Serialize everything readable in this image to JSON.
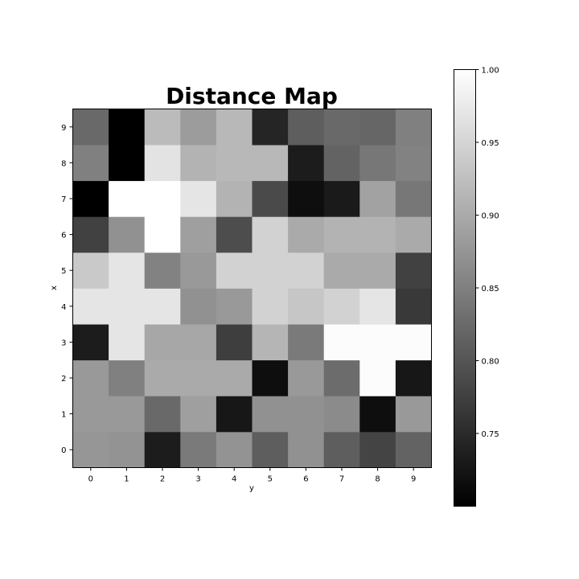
{
  "chart_data": {
    "type": "heatmap",
    "title": "Distance Map",
    "xlabel": "y",
    "ylabel": "x",
    "x_ticks": [
      "0",
      "1",
      "2",
      "3",
      "4",
      "5",
      "6",
      "7",
      "8",
      "9"
    ],
    "y_ticks": [
      "0",
      "1",
      "2",
      "3",
      "4",
      "5",
      "6",
      "7",
      "8",
      "9"
    ],
    "colormap": "gray",
    "colorbar": {
      "min": 0.7,
      "max": 1.0,
      "ticks": [
        0.75,
        0.8,
        0.85,
        0.9,
        0.95,
        1.0
      ],
      "tick_labels": [
        "0.75",
        "0.80",
        "0.85",
        "0.90",
        "0.95",
        "1.00"
      ]
    },
    "row_order": "x from 0 (bottom) to 9 (top); columns y from 0 to 9",
    "values": [
      [
        0.877,
        0.873,
        0.733,
        0.843,
        0.873,
        0.81,
        0.87,
        0.81,
        0.78,
        0.817
      ],
      [
        0.88,
        0.88,
        0.823,
        0.887,
        0.727,
        0.87,
        0.87,
        0.863,
        0.717,
        0.88
      ],
      [
        0.88,
        0.85,
        0.9,
        0.9,
        0.9,
        0.717,
        0.88,
        0.827,
        0.997,
        0.727
      ],
      [
        0.733,
        0.97,
        0.897,
        0.897,
        0.773,
        0.913,
        0.843,
        0.997,
        0.997,
        0.997
      ],
      [
        0.97,
        0.97,
        0.97,
        0.87,
        0.88,
        0.947,
        0.933,
        0.947,
        0.97,
        0.767
      ],
      [
        0.937,
        0.97,
        0.853,
        0.88,
        0.947,
        0.947,
        0.947,
        0.9,
        0.9,
        0.777
      ],
      [
        0.777,
        0.87,
        1.0,
        0.887,
        0.79,
        0.947,
        0.9,
        0.91,
        0.91,
        0.9
      ],
      [
        0.7,
        1.0,
        1.0,
        0.97,
        0.91,
        0.787,
        0.717,
        0.73,
        0.89,
        0.84
      ],
      [
        0.85,
        0.7,
        0.967,
        0.91,
        0.917,
        0.917,
        0.733,
        0.817,
        0.84,
        0.853
      ],
      [
        0.823,
        0.7,
        0.92,
        0.883,
        0.917,
        0.743,
        0.81,
        0.823,
        0.82,
        0.85
      ]
    ]
  }
}
